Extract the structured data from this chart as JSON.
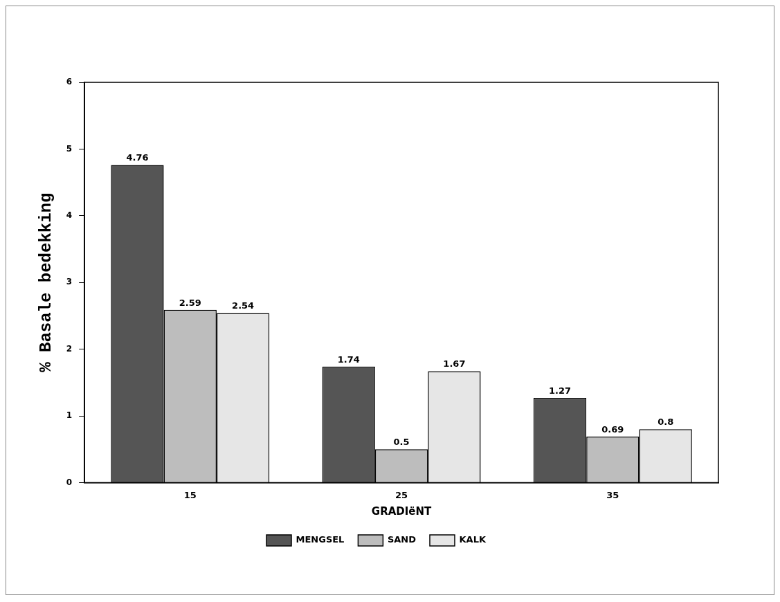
{
  "chart_data": {
    "type": "bar",
    "xlabel": "GRADIëNT",
    "ylabel": "% Basale bedekking",
    "categories": [
      "15",
      "25",
      "35"
    ],
    "series": [
      {
        "name": "MENGSEL",
        "color": "#555555",
        "values": [
          4.76,
          1.74,
          1.27
        ]
      },
      {
        "name": "SAND",
        "color": "#bdbdbd",
        "values": [
          2.59,
          0.5,
          0.69
        ]
      },
      {
        "name": "KALK",
        "color": "#e6e6e6",
        "values": [
          2.54,
          1.67,
          0.8
        ]
      }
    ],
    "ylim": [
      0,
      6
    ],
    "yticks": [
      0,
      1,
      2,
      3,
      4,
      5,
      6
    ],
    "grid": false,
    "legend": "bottom",
    "data_labels": true
  }
}
